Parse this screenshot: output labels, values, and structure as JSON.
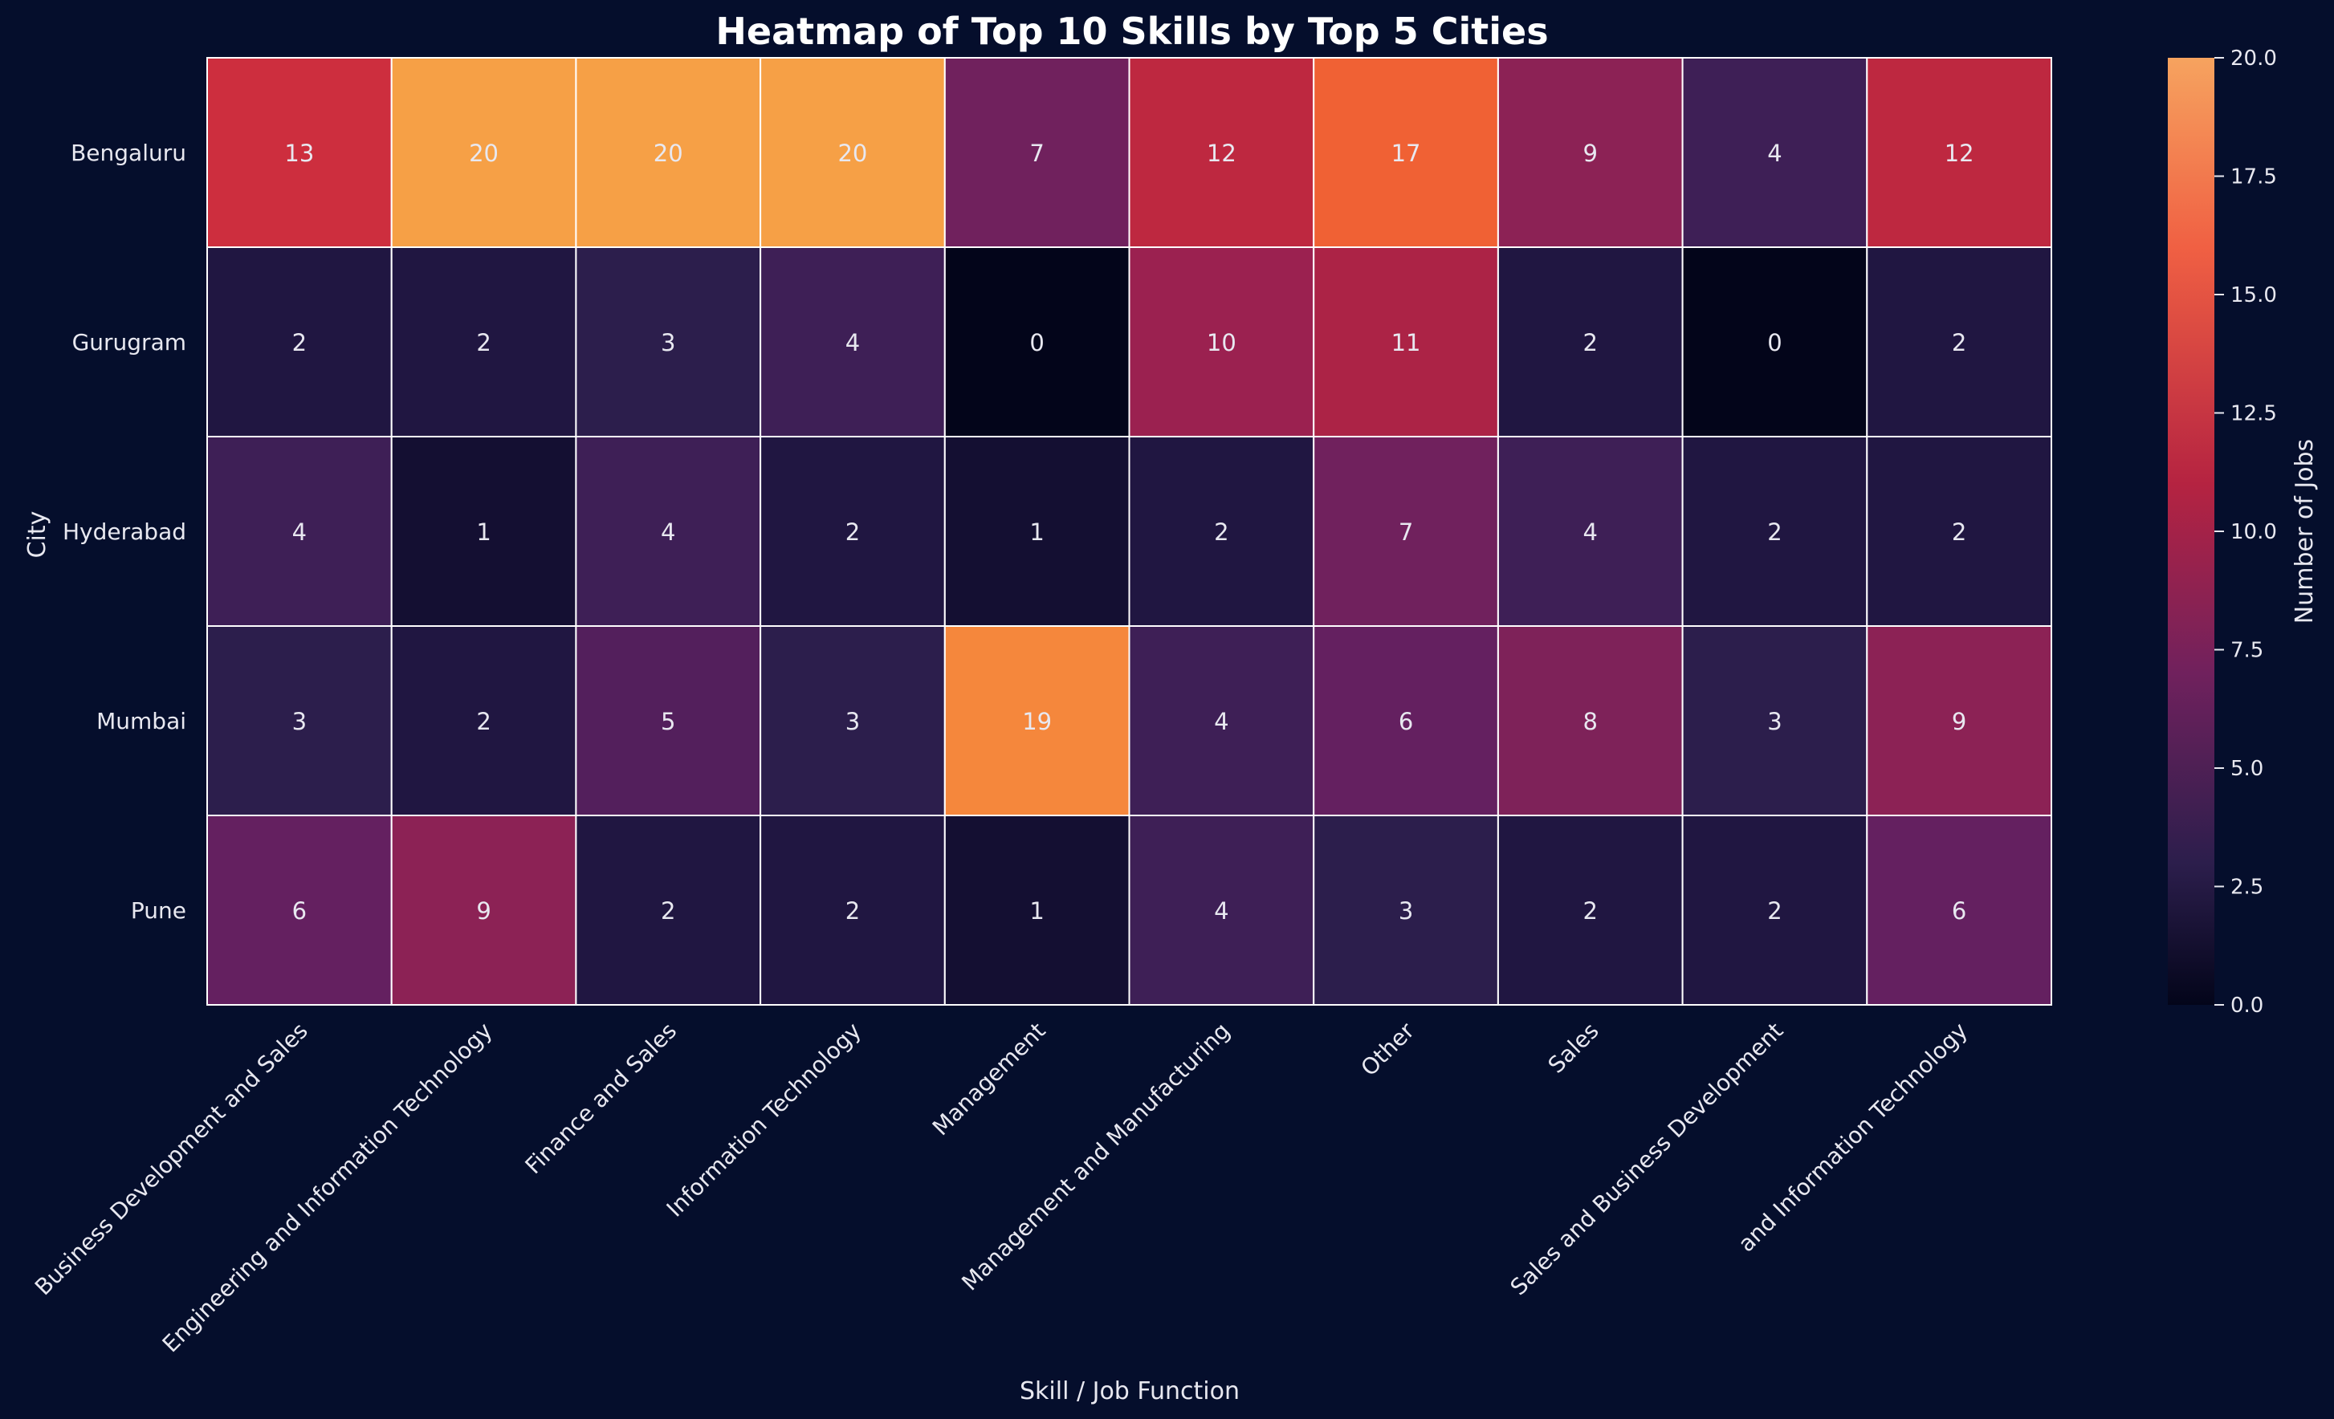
{
  "chart_data": {
    "type": "heatmap",
    "title": "Heatmap of Top 10 Skills by Top 5 Cities",
    "xlabel": "Skill / Job Function",
    "ylabel": "City",
    "x_categories": [
      "Business Development and Sales",
      "Engineering and Information Technology",
      "Finance and Sales",
      "Information Technology",
      "Management",
      "Management and Manufacturing",
      "Other",
      "Sales",
      "Sales and Business Development",
      "and Information Technology"
    ],
    "y_categories": [
      "Bengaluru",
      "Gurugram",
      "Hyderabad",
      "Mumbai",
      "Pune"
    ],
    "values": [
      [
        13,
        20,
        20,
        20,
        7,
        12,
        17,
        9,
        4,
        12
      ],
      [
        2,
        2,
        3,
        4,
        0,
        10,
        11,
        2,
        0,
        2
      ],
      [
        4,
        1,
        4,
        2,
        1,
        2,
        7,
        4,
        2,
        2
      ],
      [
        3,
        2,
        5,
        3,
        19,
        4,
        6,
        8,
        3,
        9
      ],
      [
        6,
        9,
        2,
        2,
        1,
        4,
        3,
        2,
        2,
        6
      ]
    ],
    "colorbar": {
      "label": "Number of Jobs",
      "range": [
        0,
        20
      ],
      "ticks": [
        "0.0",
        "2.5",
        "5.0",
        "7.5",
        "10.0",
        "12.5",
        "15.0",
        "17.5",
        "20.0"
      ]
    },
    "colors": {
      "background": "#050e2c",
      "text": "#e8e8f0",
      "cell_border": "#ffffff"
    }
  }
}
